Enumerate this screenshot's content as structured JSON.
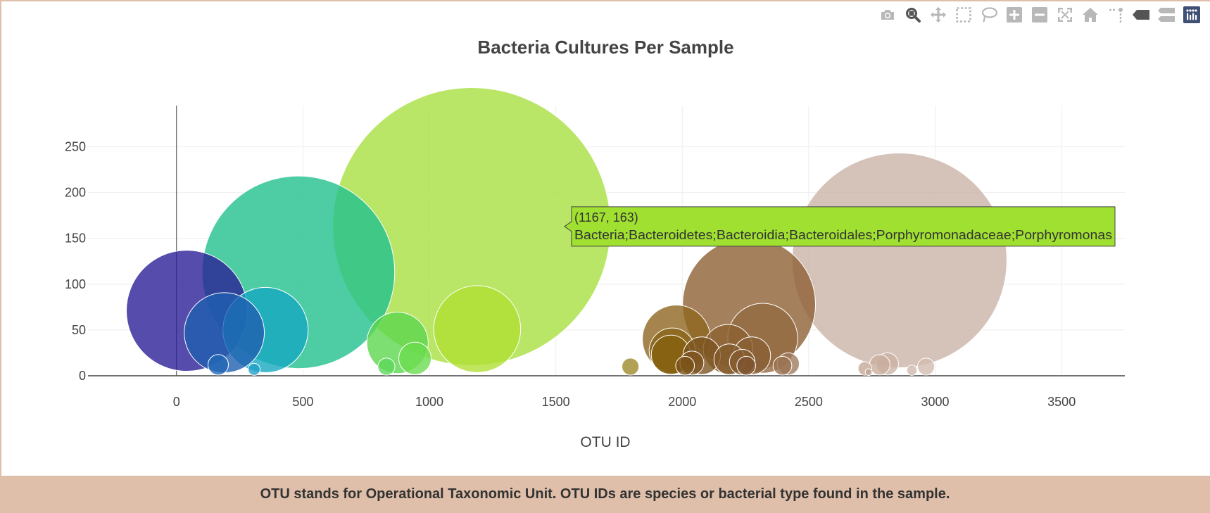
{
  "modebar": {
    "icons": [
      "camera-icon",
      "zoom-icon",
      "pan-icon",
      "box-select-icon",
      "lasso-icon",
      "zoom-in-icon",
      "zoom-out-icon",
      "autoscale-icon",
      "reset-axes-icon",
      "spike-lines-icon",
      "hover-closest-icon",
      "hover-compare-icon",
      "plotly-logo-icon"
    ]
  },
  "footer": {
    "text": "OTU stands for Operational Taxonomic Unit. OTU IDs are species or bacterial type found in the sample."
  },
  "colors": {
    "axis": "#444444",
    "grid": "#eeeeee",
    "footer_bg": "#dfbfa9"
  },
  "chart_data": {
    "type": "scatter",
    "title": "Bacteria Cultures Per Sample",
    "xlabel": "OTU ID",
    "ylabel": "",
    "xlim": [
      -350,
      3750
    ],
    "ylim": [
      0,
      295
    ],
    "x_ticks": [
      0,
      500,
      1000,
      1500,
      2000,
      2500,
      3000,
      3500
    ],
    "y_ticks": [
      0,
      50,
      100,
      150,
      200,
      250
    ],
    "grid": true,
    "legend": "none",
    "series": [
      {
        "marker": "bubble",
        "points": [
          {
            "x": 41,
            "y": 71,
            "size": 71,
            "color": "#2a1f96"
          },
          {
            "x": 189,
            "y": 47,
            "size": 47,
            "color": "#1f5fb0"
          },
          {
            "x": 165,
            "y": 12,
            "size": 12,
            "color": "#2266b5"
          },
          {
            "x": 307,
            "y": 7,
            "size": 7,
            "color": "#1fa0c8"
          },
          {
            "x": 352,
            "y": 50,
            "size": 50,
            "color": "#16a9c0"
          },
          {
            "x": 482,
            "y": 113,
            "size": 113,
            "color": "#22c08e"
          },
          {
            "x": 830,
            "y": 10,
            "size": 10,
            "color": "#5cd85a"
          },
          {
            "x": 874,
            "y": 36,
            "size": 36,
            "color": "#5cd64f"
          },
          {
            "x": 943,
            "y": 19,
            "size": 19,
            "color": "#6cdc4f"
          },
          {
            "x": 1167,
            "y": 163,
            "size": 163,
            "color": "#a8e040"
          },
          {
            "x": 1189,
            "y": 51,
            "size": 51,
            "color": "#b0e035"
          },
          {
            "x": 1795,
            "y": 10,
            "size": 10,
            "color": "#9e8a2a"
          },
          {
            "x": 1977,
            "y": 40,
            "size": 40,
            "color": "#8e6620"
          },
          {
            "x": 1960,
            "y": 27,
            "size": 27,
            "color": "#8a6418"
          },
          {
            "x": 1955,
            "y": 23,
            "size": 23,
            "color": "#866010"
          },
          {
            "x": 2011,
            "y": 11,
            "size": 11,
            "color": "#7a5218"
          },
          {
            "x": 2038,
            "y": 14,
            "size": 14,
            "color": "#7e5420"
          },
          {
            "x": 2077,
            "y": 22,
            "size": 22,
            "color": "#7c5420"
          },
          {
            "x": 2181,
            "y": 29,
            "size": 29,
            "color": "#8c6232"
          },
          {
            "x": 2186,
            "y": 18,
            "size": 18,
            "color": "#825a2c"
          },
          {
            "x": 2237,
            "y": 15,
            "size": 15,
            "color": "#855c30"
          },
          {
            "x": 2264,
            "y": 78,
            "size": 78,
            "color": "#8e6034"
          },
          {
            "x": 2253,
            "y": 11,
            "size": 11,
            "color": "#7e5430"
          },
          {
            "x": 2275,
            "y": 22,
            "size": 22,
            "color": "#8a6034"
          },
          {
            "x": 2318,
            "y": 41,
            "size": 41,
            "color": "#936a42"
          },
          {
            "x": 2396,
            "y": 11,
            "size": 11,
            "color": "#9a7250"
          },
          {
            "x": 2419,
            "y": 13,
            "size": 13,
            "color": "#a07c5e"
          },
          {
            "x": 2722,
            "y": 8,
            "size": 8,
            "color": "#c6a896"
          },
          {
            "x": 2737,
            "y": 4,
            "size": 4,
            "color": "#c0a28e"
          },
          {
            "x": 2781,
            "y": 12,
            "size": 12,
            "color": "#c9ae9e"
          },
          {
            "x": 2811,
            "y": 13,
            "size": 13,
            "color": "#ccb2a4"
          },
          {
            "x": 2859,
            "y": 126,
            "size": 126,
            "color": "#cbb3a6"
          },
          {
            "x": 2908,
            "y": 6,
            "size": 6,
            "color": "#d0b8ac"
          },
          {
            "x": 2964,
            "y": 10,
            "size": 10,
            "color": "#d2bcb0"
          }
        ]
      }
    ],
    "hover": {
      "point_x": 1167,
      "point_y": 163,
      "label_line1": "(1167, 163)",
      "label_line2": "Bacteria;Bacteroidetes;Bacteroidia;Bacteroidales;Porphyromonadaceae;Porphyromonas",
      "bg_color": "#a0e030"
    }
  }
}
